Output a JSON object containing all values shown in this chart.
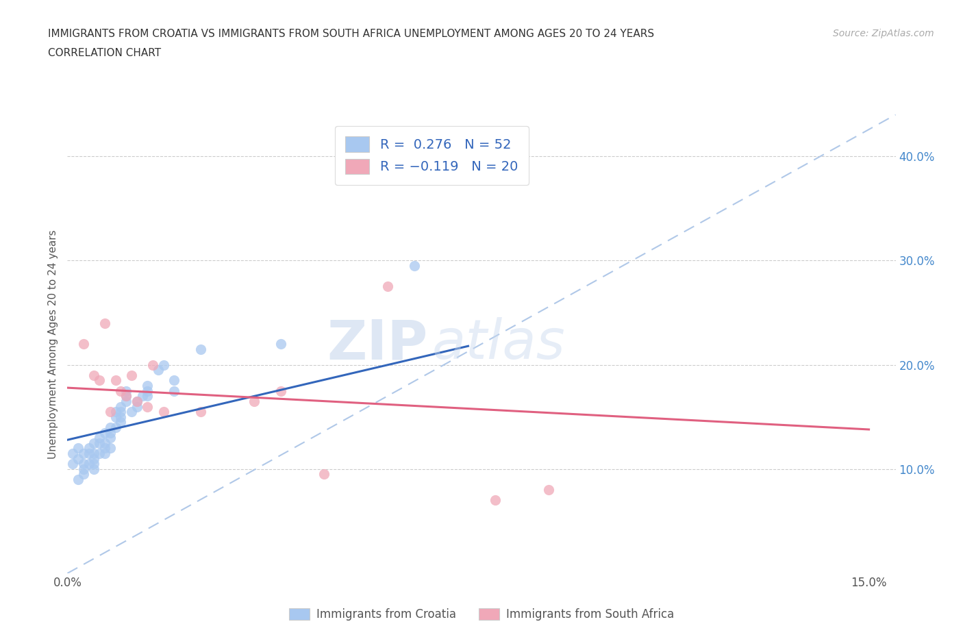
{
  "title_line1": "IMMIGRANTS FROM CROATIA VS IMMIGRANTS FROM SOUTH AFRICA UNEMPLOYMENT AMONG AGES 20 TO 24 YEARS",
  "title_line2": "CORRELATION CHART",
  "source_text": "Source: ZipAtlas.com",
  "ylabel": "Unemployment Among Ages 20 to 24 years",
  "xlim": [
    0.0,
    0.155
  ],
  "ylim": [
    0.0,
    0.44
  ],
  "xtick_positions": [
    0.0,
    0.05,
    0.1,
    0.15
  ],
  "xticklabels": [
    "0.0%",
    "",
    "",
    "15.0%"
  ],
  "ytick_positions": [
    0.1,
    0.2,
    0.3,
    0.4
  ],
  "ytick_labels": [
    "10.0%",
    "20.0%",
    "30.0%",
    "40.0%"
  ],
  "croatia_color": "#a8c8f0",
  "south_africa_color": "#f0a8b8",
  "croatia_line_color": "#3366bb",
  "south_africa_line_color": "#e06080",
  "diagonal_line_color": "#b0c8e8",
  "r_croatia": 0.276,
  "n_croatia": 52,
  "r_south_africa": -0.119,
  "n_south_africa": 20,
  "watermark_zip": "ZIP",
  "watermark_atlas": "atlas",
  "croatia_scatter_x": [
    0.001,
    0.001,
    0.002,
    0.002,
    0.002,
    0.003,
    0.003,
    0.003,
    0.003,
    0.004,
    0.004,
    0.004,
    0.005,
    0.005,
    0.005,
    0.005,
    0.005,
    0.006,
    0.006,
    0.006,
    0.007,
    0.007,
    0.007,
    0.007,
    0.008,
    0.008,
    0.008,
    0.008,
    0.009,
    0.009,
    0.009,
    0.01,
    0.01,
    0.01,
    0.01,
    0.011,
    0.011,
    0.011,
    0.012,
    0.013,
    0.013,
    0.014,
    0.015,
    0.015,
    0.015,
    0.017,
    0.018,
    0.02,
    0.02,
    0.025,
    0.04,
    0.065
  ],
  "croatia_scatter_y": [
    0.115,
    0.105,
    0.12,
    0.11,
    0.09,
    0.115,
    0.105,
    0.1,
    0.095,
    0.12,
    0.115,
    0.105,
    0.125,
    0.115,
    0.11,
    0.105,
    0.1,
    0.13,
    0.125,
    0.115,
    0.135,
    0.125,
    0.12,
    0.115,
    0.14,
    0.135,
    0.13,
    0.12,
    0.155,
    0.15,
    0.14,
    0.16,
    0.155,
    0.15,
    0.145,
    0.175,
    0.17,
    0.165,
    0.155,
    0.165,
    0.16,
    0.17,
    0.18,
    0.175,
    0.17,
    0.195,
    0.2,
    0.185,
    0.175,
    0.215,
    0.22,
    0.295
  ],
  "south_africa_scatter_x": [
    0.003,
    0.005,
    0.006,
    0.007,
    0.008,
    0.009,
    0.01,
    0.011,
    0.012,
    0.013,
    0.015,
    0.016,
    0.018,
    0.025,
    0.035,
    0.04,
    0.048,
    0.06,
    0.08,
    0.09
  ],
  "south_africa_scatter_y": [
    0.22,
    0.19,
    0.185,
    0.24,
    0.155,
    0.185,
    0.175,
    0.17,
    0.19,
    0.165,
    0.16,
    0.2,
    0.155,
    0.155,
    0.165,
    0.175,
    0.095,
    0.275,
    0.07,
    0.08
  ],
  "croatia_trendline_x0": 0.0,
  "croatia_trendline_y0": 0.128,
  "croatia_trendline_x1": 0.075,
  "croatia_trendline_y1": 0.218,
  "sa_trendline_x0": 0.0,
  "sa_trendline_y0": 0.178,
  "sa_trendline_x1": 0.15,
  "sa_trendline_y1": 0.138
}
